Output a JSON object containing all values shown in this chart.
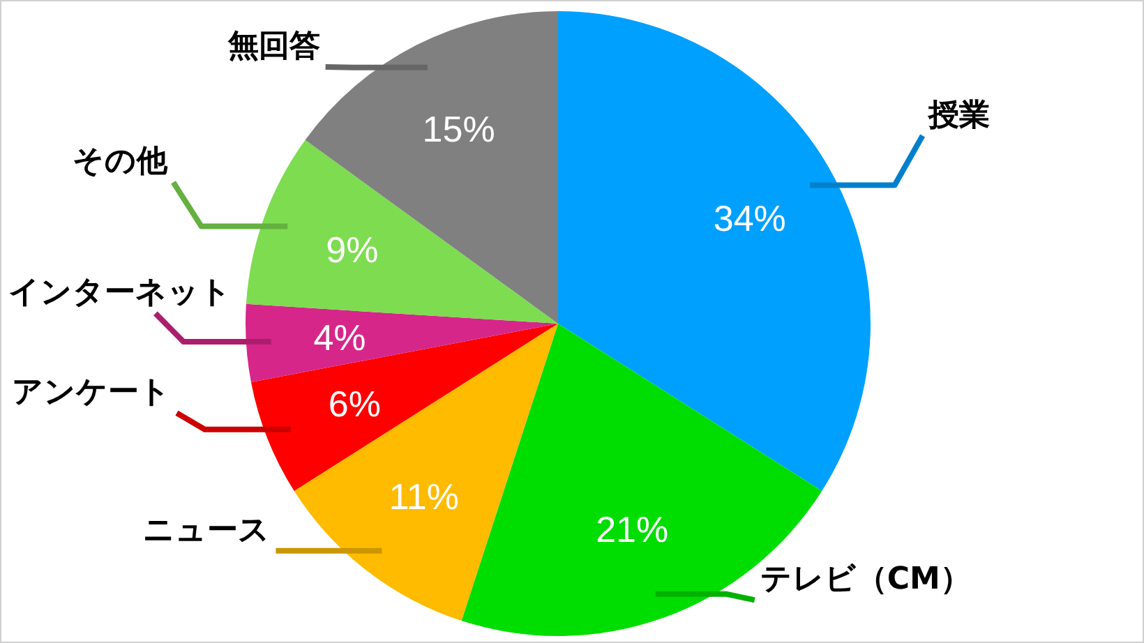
{
  "chart_data": {
    "type": "pie",
    "categories": [
      "授業",
      "テレビ（CM）",
      "ニュース",
      "アンケート",
      "インターネット",
      "その他",
      "無回答"
    ],
    "values": [
      34,
      21,
      11,
      6,
      4,
      9,
      15
    ],
    "value_labels": [
      "34%",
      "21%",
      "11%",
      "6%",
      "4%",
      "9%",
      "15%"
    ],
    "colors": [
      "#00a0ff",
      "#00dd00",
      "#ffbb00",
      "#ff0000",
      "#d6268a",
      "#7ddc50",
      "#808080"
    ]
  }
}
